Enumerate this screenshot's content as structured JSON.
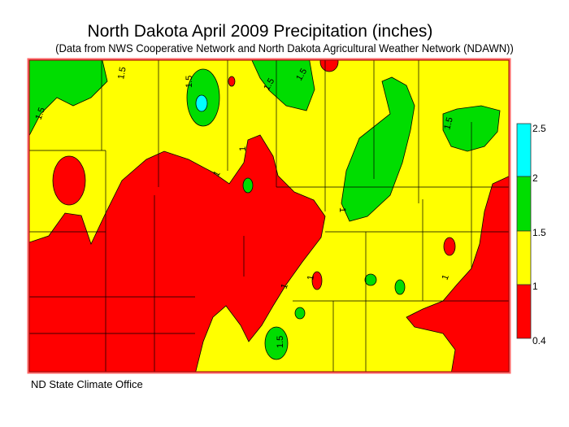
{
  "title": "North Dakota April 2009 Precipitation (inches)",
  "subtitle": "(Data from NWS Cooperative Network and North Dakota Agricultural Weather Network (NDAWN))",
  "footer": "ND State Climate Office",
  "legend": {
    "ticks": [
      "2.5",
      "2",
      "1.5",
      "1",
      "0.4"
    ],
    "bins": [
      {
        "range": "2 - 2.5",
        "color": "#00ffff"
      },
      {
        "range": "1.5 - 2",
        "color": "#00dd00"
      },
      {
        "range": "1 - 1.5",
        "color": "#ffff00"
      },
      {
        "range": "0.4 - 1",
        "color": "#ff0000"
      }
    ]
  },
  "contour_labels": [
    "1.5",
    "1.5",
    "1.5",
    "1.5",
    "1.5",
    "1.5",
    "1",
    "1",
    "1",
    "1",
    "1",
    "1.5",
    "1"
  ]
}
